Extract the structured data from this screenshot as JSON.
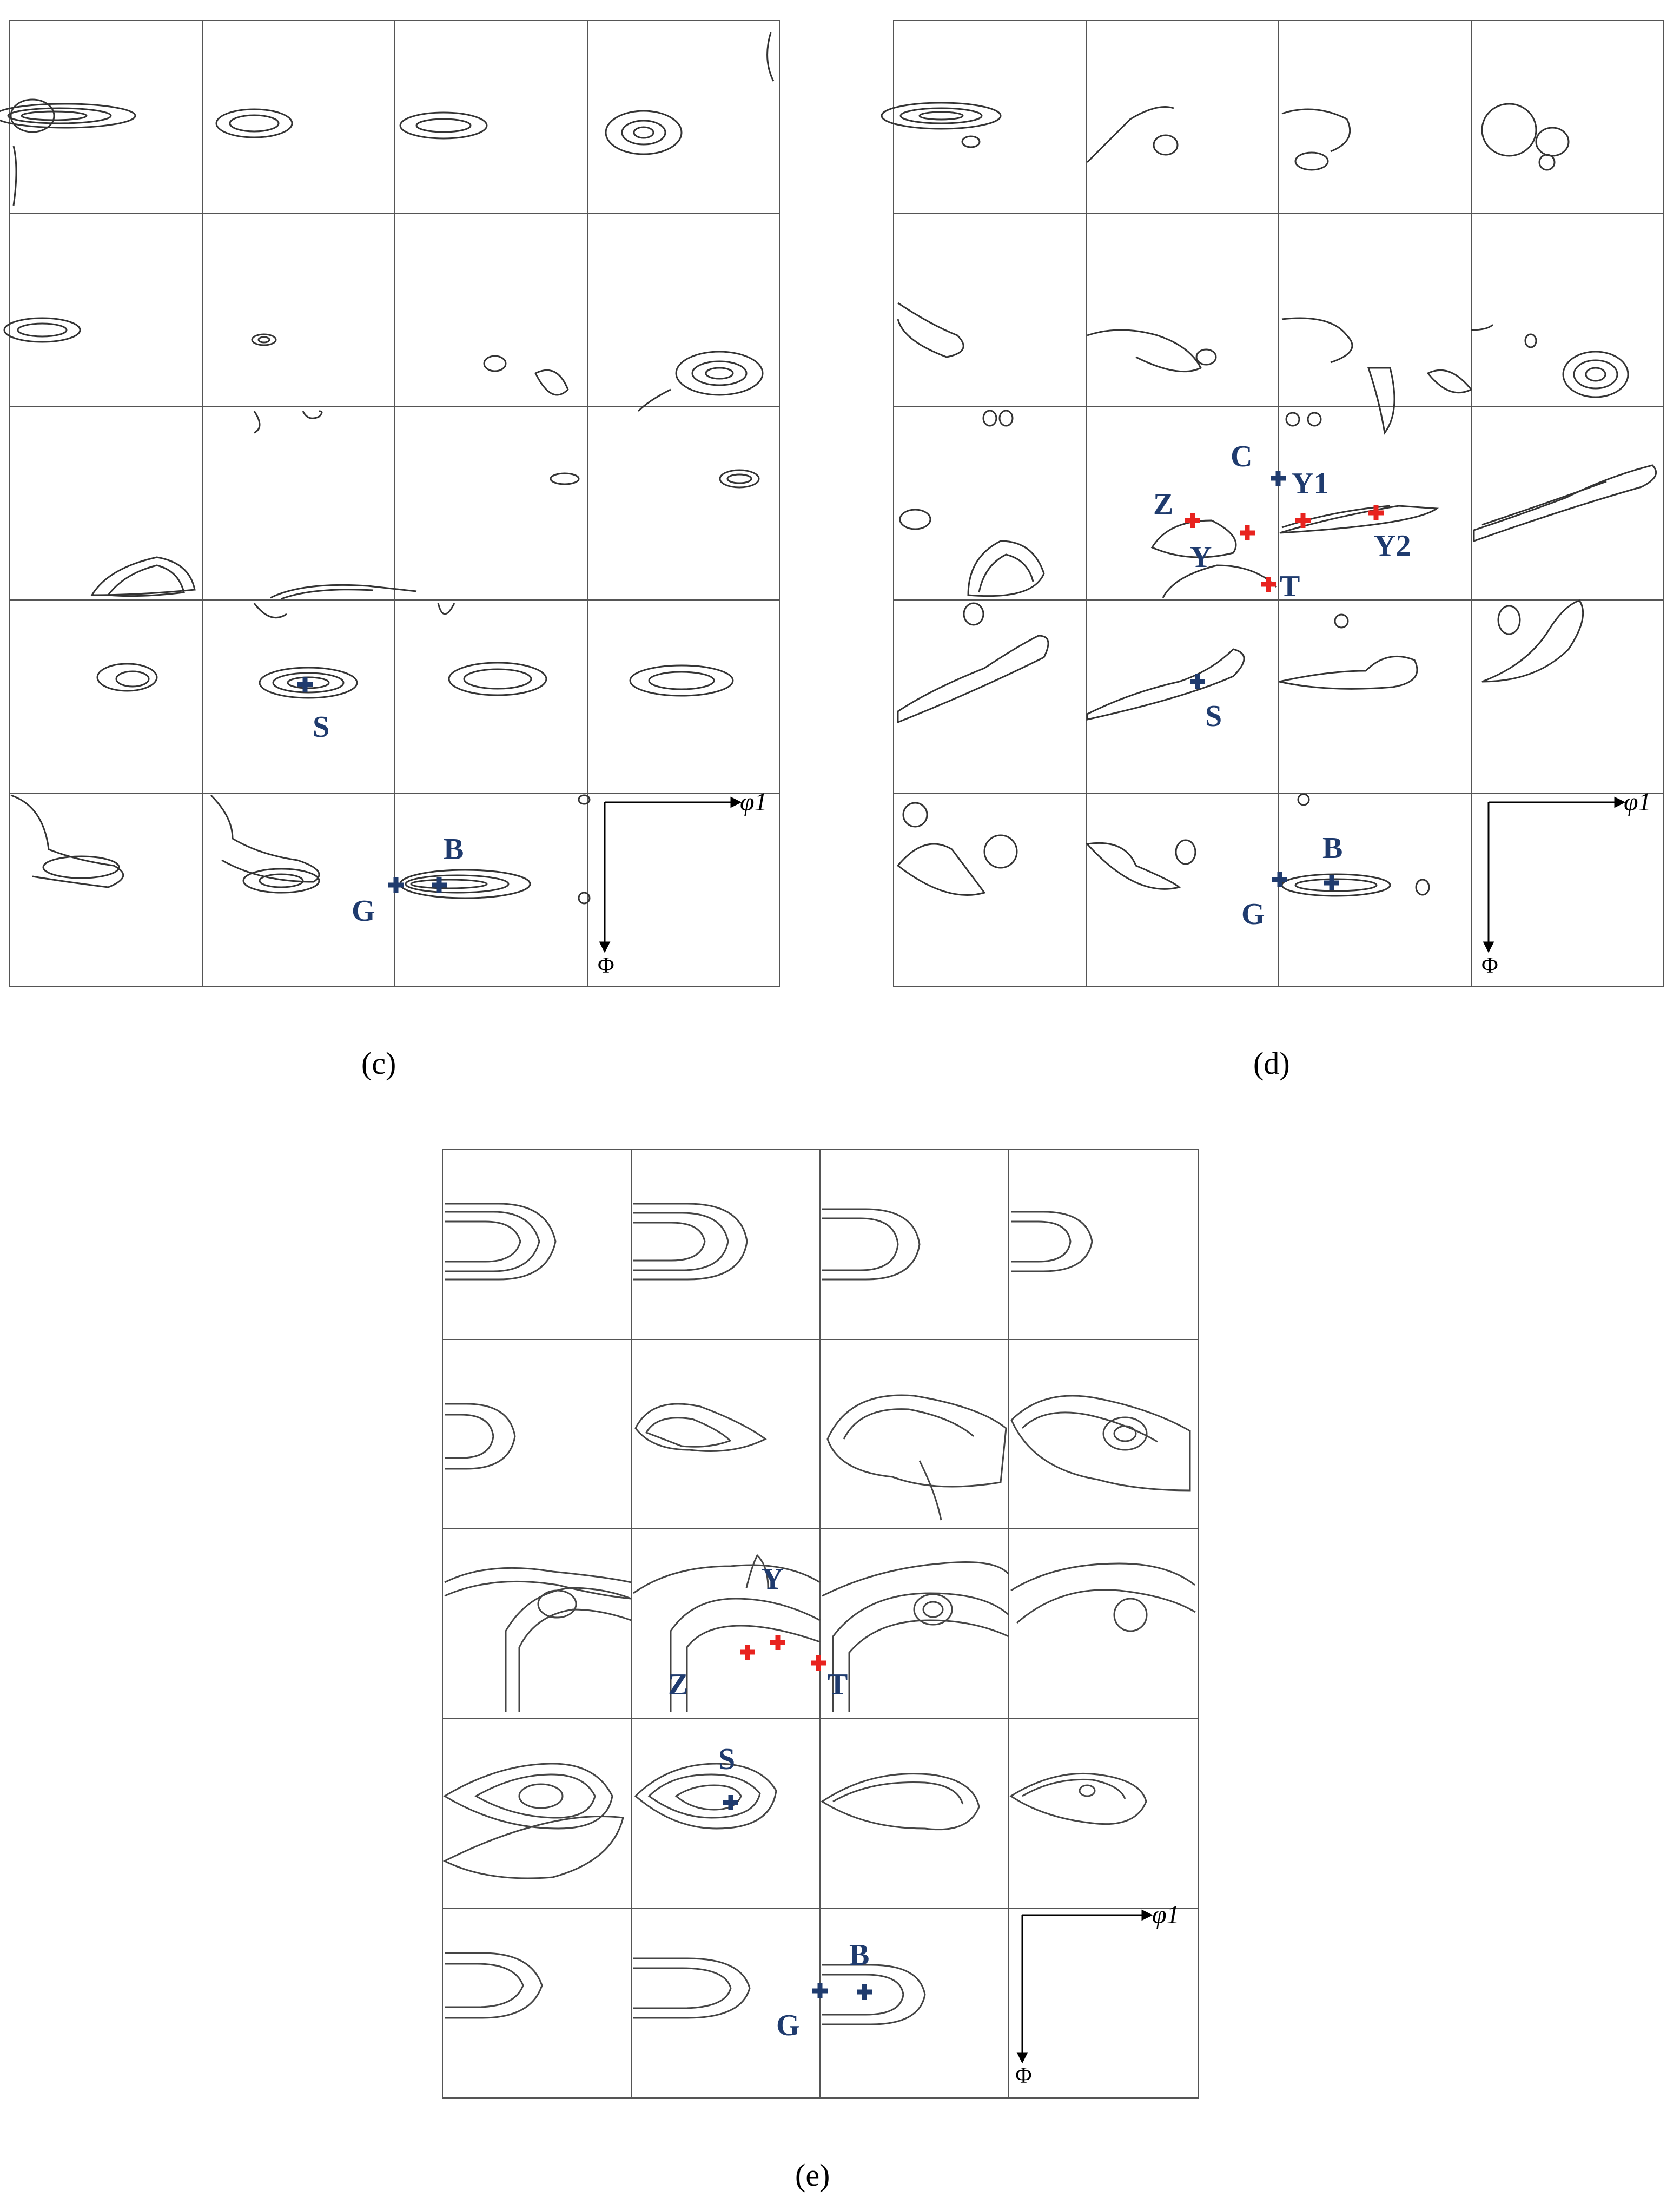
{
  "figure": {
    "panels": [
      {
        "id": "c",
        "caption": "(c)",
        "axes": {
          "x_label": "φ1",
          "y_label": "Φ"
        },
        "markers": [
          {
            "label": "S",
            "color": "#1f3b6e"
          },
          {
            "label": "B",
            "color": "#1f3b6e"
          },
          {
            "label": "G",
            "color": "#1f3b6e"
          }
        ]
      },
      {
        "id": "d",
        "caption": "(d)",
        "axes": {
          "x_label": "φ1",
          "y_label": "Φ"
        },
        "markers": [
          {
            "label": "C",
            "color": "#1f3b6e"
          },
          {
            "label": "Y1",
            "color": "#e8231f"
          },
          {
            "label": "Z",
            "color": "#e8231f"
          },
          {
            "label": "Y",
            "color": "#e8231f"
          },
          {
            "label": "T",
            "color": "#e8231f"
          },
          {
            "label": "Y2",
            "color": "#e8231f"
          },
          {
            "label": "S",
            "color": "#1f3b6e"
          },
          {
            "label": "B",
            "color": "#1f3b6e"
          },
          {
            "label": "G",
            "color": "#1f3b6e"
          }
        ]
      },
      {
        "id": "e",
        "caption": "(e)",
        "axes": {
          "x_label": "φ1",
          "y_label": "Φ"
        },
        "markers": [
          {
            "label": "Y",
            "color": "#e8231f"
          },
          {
            "label": "Z",
            "color": "#e8231f"
          },
          {
            "label": "T",
            "color": "#e8231f"
          },
          {
            "label": "S",
            "color": "#1f3b6e"
          },
          {
            "label": "B",
            "color": "#1f3b6e"
          },
          {
            "label": "G",
            "color": "#1f3b6e"
          }
        ]
      }
    ],
    "colors": {
      "ideal_orientation": "#1f3b6e",
      "other_orientation": "#e8231f",
      "contour": "#333333",
      "grid": "#555555"
    }
  }
}
